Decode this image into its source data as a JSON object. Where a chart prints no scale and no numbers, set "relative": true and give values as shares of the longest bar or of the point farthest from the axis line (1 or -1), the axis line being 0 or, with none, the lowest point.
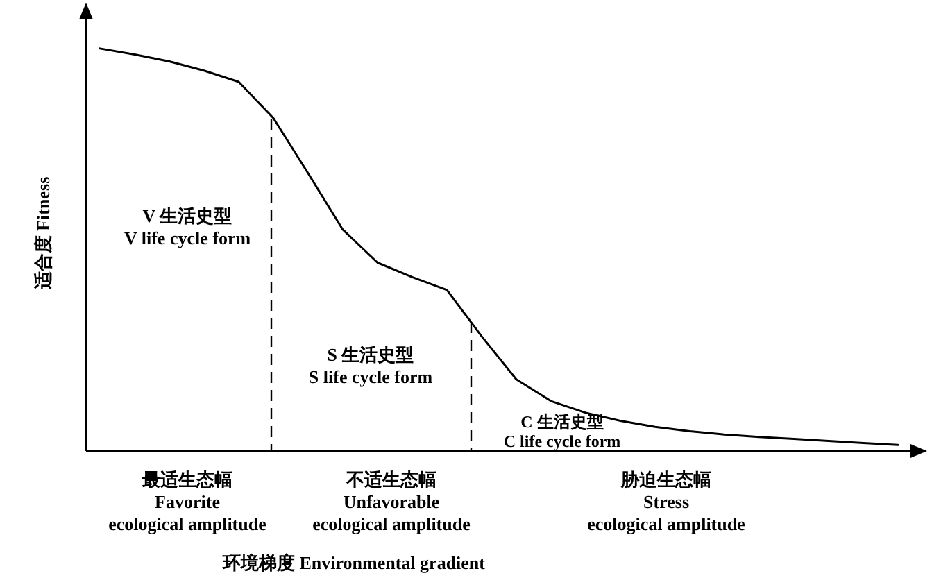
{
  "chart_data": {
    "type": "line",
    "relative": true,
    "ylabel": "适合度 Fitness",
    "legend": false,
    "marker": "none",
    "line_style": "solid",
    "categories": [
      null,
      null,
      null,
      null,
      null,
      null,
      null,
      null,
      null,
      null,
      null,
      null,
      null,
      null,
      null,
      null,
      null,
      null,
      null,
      null,
      null,
      null,
      null,
      null
    ],
    "series": [
      {
        "color": "#000000",
        "values": [
          1.0,
          0.985,
          0.968,
          0.945,
          0.917,
          0.827,
          0.69,
          0.55,
          0.468,
          0.432,
          0.4,
          0.285,
          0.178,
          0.124,
          0.095,
          0.075,
          0.06,
          0.049,
          0.041,
          0.035,
          0.03,
          0.025,
          0.02,
          0.015
        ]
      }
    ],
    "annotations": [
      "V 生活史型\nV life cycle form",
      "S 生活史型\nS life cycle form",
      "C 生活史型\nC life cycle form",
      "最适生态幅\nFavorite\necological amplitude",
      "不适生态幅\nUnfavorable\necological amplitude",
      "胁迫生态幅\nStress\necological amplitude",
      "环境梯度 Environmental gradient"
    ]
  }
}
